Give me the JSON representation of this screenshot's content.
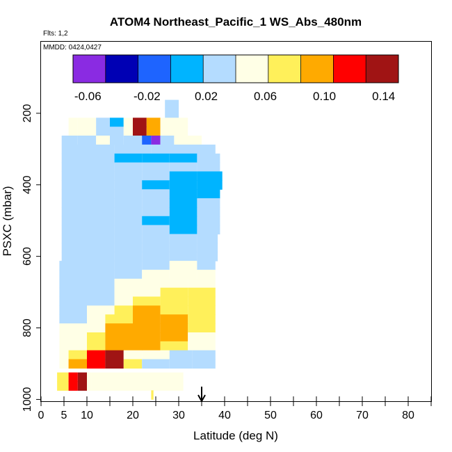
{
  "chart_data": {
    "type": "heatmap",
    "title": "ATOM4 Northeast_Pacific_1 WS_Abs_480nm",
    "flights_note": "Flts: 1,2",
    "date_note": "MMDD: 0424,0427",
    "xlabel": "Latitude (deg N)",
    "ylabel": "PSXC (mbar)",
    "xlim": [
      0,
      85
    ],
    "ylim": [
      1000,
      0
    ],
    "x_major_ticks": [
      0,
      5,
      10,
      20,
      30,
      40,
      50,
      60,
      70,
      80
    ],
    "x_minor_ticks": [
      15,
      25,
      35,
      45,
      55,
      65,
      75,
      85
    ],
    "y_ticks": [
      200,
      400,
      600,
      800,
      1000
    ],
    "colorbar": {
      "range": [
        -0.07,
        0.15
      ],
      "ticks": [
        -0.06,
        -0.02,
        0.02,
        0.06,
        0.1,
        0.14
      ],
      "tick_labels": [
        "-0.06",
        "-0.02",
        "0.02",
        "0.06",
        "0.10",
        "0.14"
      ],
      "colors": [
        "#8a2be2",
        "#0000b4",
        "#1e64ff",
        "#00b4ff",
        "#b4dcff",
        "#ffffe6",
        "#fff05a",
        "#ffaa00",
        "#ff0000",
        "#a01414"
      ]
    },
    "marker": {
      "type": "arrow",
      "x": 35,
      "label": ""
    },
    "rows": [
      {
        "p": 175,
        "segments": [
          [
            27,
            30,
            0.025
          ]
        ]
      },
      {
        "p": 200,
        "segments": [
          [
            27,
            30,
            0.025
          ]
        ]
      },
      {
        "p": 225,
        "segments": [
          [
            6,
            8,
            0.06
          ],
          [
            8,
            12,
            0.05
          ],
          [
            12,
            15,
            0.03
          ],
          [
            15,
            18,
            0.01
          ],
          [
            18,
            20,
            0.05
          ],
          [
            20,
            23,
            0.13
          ],
          [
            23,
            26,
            0.09
          ],
          [
            26,
            30,
            0.06
          ],
          [
            30,
            32,
            0.04
          ]
        ]
      },
      {
        "p": 250,
        "segments": [
          [
            6,
            8,
            0.06
          ],
          [
            8,
            12,
            0.05
          ],
          [
            12,
            15,
            0.03
          ],
          [
            15,
            18,
            0.02
          ],
          [
            18,
            20,
            0.05
          ],
          [
            20,
            23,
            0.14
          ],
          [
            23,
            26,
            0.1
          ],
          [
            26,
            30,
            0.06
          ],
          [
            30,
            32,
            0.04
          ]
        ]
      },
      {
        "p": 275,
        "segments": [
          [
            4.5,
            8,
            0.03
          ],
          [
            8,
            12,
            0.02
          ],
          [
            12,
            15,
            0.04
          ],
          [
            15,
            18,
            0.03
          ],
          [
            18,
            22,
            0.02
          ],
          [
            22,
            24,
            -0.01
          ],
          [
            24,
            26,
            -0.05
          ],
          [
            26,
            29,
            0.03
          ],
          [
            29,
            35,
            0.04
          ]
        ]
      },
      {
        "p": 300,
        "segments": [
          [
            4.5,
            10,
            0.03
          ],
          [
            10,
            16,
            0.025
          ],
          [
            16,
            20,
            0.02
          ],
          [
            20,
            24,
            0.03
          ],
          [
            24,
            30,
            0.02
          ],
          [
            30,
            38,
            0.02
          ]
        ]
      },
      {
        "p": 325,
        "segments": [
          [
            4.5,
            10,
            0.03
          ],
          [
            10,
            16,
            0.02
          ],
          [
            16,
            22,
            0.015
          ],
          [
            22,
            28,
            0.01
          ],
          [
            28,
            34,
            0.01
          ],
          [
            34,
            39,
            0.02
          ]
        ]
      },
      {
        "p": 350,
        "segments": [
          [
            4.5,
            10,
            0.03
          ],
          [
            10,
            16,
            0.025
          ],
          [
            16,
            22,
            0.02
          ],
          [
            22,
            28,
            0.025
          ],
          [
            28,
            34,
            0.02
          ],
          [
            34,
            39,
            0.025
          ]
        ]
      },
      {
        "p": 375,
        "segments": [
          [
            4.5,
            10,
            0.03
          ],
          [
            10,
            16,
            0.025
          ],
          [
            16,
            22,
            0.02
          ],
          [
            22,
            28,
            0.02
          ],
          [
            28,
            34,
            0.01
          ],
          [
            34,
            39.5,
            0.0
          ]
        ]
      },
      {
        "p": 400,
        "segments": [
          [
            4.5,
            10,
            0.03
          ],
          [
            10,
            16,
            0.025
          ],
          [
            16,
            22,
            0.02
          ],
          [
            22,
            28,
            0.015
          ],
          [
            28,
            34,
            0.01
          ],
          [
            34,
            39.5,
            0.005
          ]
        ]
      },
      {
        "p": 425,
        "segments": [
          [
            4.5,
            10,
            0.03
          ],
          [
            10,
            16,
            0.025
          ],
          [
            16,
            22,
            0.02
          ],
          [
            22,
            28,
            0.02
          ],
          [
            28,
            34,
            0.005
          ],
          [
            34,
            39,
            0.015
          ]
        ]
      },
      {
        "p": 450,
        "segments": [
          [
            4.5,
            10,
            0.03
          ],
          [
            10,
            16,
            0.025
          ],
          [
            16,
            22,
            0.02
          ],
          [
            22,
            28,
            0.02
          ],
          [
            28,
            34,
            0.01
          ],
          [
            34,
            39,
            0.02
          ]
        ]
      },
      {
        "p": 475,
        "segments": [
          [
            4.5,
            10,
            0.03
          ],
          [
            10,
            16,
            0.025
          ],
          [
            16,
            22,
            0.02
          ],
          [
            22,
            28,
            0.02
          ],
          [
            28,
            34,
            0.01
          ],
          [
            34,
            39,
            0.02
          ]
        ]
      },
      {
        "p": 500,
        "segments": [
          [
            4.5,
            10,
            0.03
          ],
          [
            10,
            16,
            0.025
          ],
          [
            16,
            22,
            0.02
          ],
          [
            22,
            28,
            0.015
          ],
          [
            28,
            34,
            0.01
          ],
          [
            34,
            39,
            0.02
          ]
        ]
      },
      {
        "p": 525,
        "segments": [
          [
            4.5,
            10,
            0.03
          ],
          [
            10,
            16,
            0.025
          ],
          [
            16,
            22,
            0.02
          ],
          [
            22,
            28,
            0.02
          ],
          [
            28,
            34,
            0.015
          ],
          [
            34,
            39,
            0.02
          ]
        ]
      },
      {
        "p": 550,
        "segments": [
          [
            4.5,
            10,
            0.03
          ],
          [
            10,
            16,
            0.025
          ],
          [
            16,
            22,
            0.02
          ],
          [
            22,
            28,
            0.02
          ],
          [
            28,
            34,
            0.02
          ],
          [
            34,
            38.5,
            0.025
          ]
        ]
      },
      {
        "p": 575,
        "segments": [
          [
            4.5,
            10,
            0.03
          ],
          [
            10,
            16,
            0.025
          ],
          [
            16,
            22,
            0.02
          ],
          [
            22,
            28,
            0.02
          ],
          [
            28,
            34,
            0.02
          ],
          [
            34,
            38.5,
            0.025
          ]
        ]
      },
      {
        "p": 600,
        "segments": [
          [
            4.5,
            10,
            0.03
          ],
          [
            10,
            16,
            0.025
          ],
          [
            16,
            22,
            0.02
          ],
          [
            22,
            28,
            0.02
          ],
          [
            28,
            34,
            0.025
          ],
          [
            34,
            38.5,
            0.03
          ]
        ]
      },
      {
        "p": 625,
        "segments": [
          [
            4,
            10,
            0.035
          ],
          [
            10,
            16,
            0.03
          ],
          [
            16,
            22,
            0.025
          ],
          [
            22,
            28,
            0.03
          ],
          [
            28,
            34,
            0.045
          ],
          [
            34,
            38,
            0.03
          ]
        ]
      },
      {
        "p": 650,
        "segments": [
          [
            4,
            10,
            0.035
          ],
          [
            10,
            16,
            0.03
          ],
          [
            16,
            22,
            0.03
          ],
          [
            22,
            28,
            0.045
          ],
          [
            28,
            34,
            0.055
          ],
          [
            34,
            38,
            0.04
          ]
        ]
      },
      {
        "p": 675,
        "segments": [
          [
            4,
            10,
            0.035
          ],
          [
            10,
            16,
            0.03
          ],
          [
            16,
            20,
            0.04
          ],
          [
            20,
            26,
            0.06
          ],
          [
            26,
            32,
            0.06
          ],
          [
            32,
            38,
            0.04
          ]
        ]
      },
      {
        "p": 700,
        "segments": [
          [
            4,
            10,
            0.035
          ],
          [
            10,
            16,
            0.035
          ],
          [
            16,
            20,
            0.045
          ],
          [
            20,
            26,
            0.06
          ],
          [
            26,
            32,
            0.07
          ],
          [
            32,
            38,
            0.065
          ]
        ]
      },
      {
        "p": 725,
        "segments": [
          [
            4,
            10,
            0.035
          ],
          [
            10,
            16,
            0.035
          ],
          [
            16,
            20,
            0.05
          ],
          [
            20,
            26,
            0.065
          ],
          [
            26,
            32,
            0.075
          ],
          [
            32,
            38,
            0.065
          ]
        ]
      },
      {
        "p": 750,
        "segments": [
          [
            4,
            10,
            0.035
          ],
          [
            10,
            16,
            0.04
          ],
          [
            16,
            20,
            0.065
          ],
          [
            20,
            26,
            0.085
          ],
          [
            26,
            32,
            0.08
          ],
          [
            32,
            38,
            0.07
          ]
        ]
      },
      {
        "p": 775,
        "segments": [
          [
            4,
            10,
            0.035
          ],
          [
            10,
            14,
            0.05
          ],
          [
            14,
            20,
            0.08
          ],
          [
            20,
            26,
            0.09
          ],
          [
            26,
            32,
            0.085
          ],
          [
            32,
            38,
            0.07
          ]
        ]
      },
      {
        "p": 800,
        "segments": [
          [
            4,
            10,
            0.04
          ],
          [
            10,
            14,
            0.06
          ],
          [
            14,
            20,
            0.085
          ],
          [
            20,
            26,
            0.09
          ],
          [
            26,
            32,
            0.085
          ],
          [
            32,
            38,
            0.065
          ]
        ]
      },
      {
        "p": 825,
        "segments": [
          [
            4,
            10,
            0.04
          ],
          [
            10,
            14,
            0.065
          ],
          [
            14,
            20,
            0.09
          ],
          [
            20,
            26,
            0.095
          ],
          [
            26,
            32,
            0.085
          ],
          [
            32,
            38,
            0.06
          ]
        ]
      },
      {
        "p": 850,
        "segments": [
          [
            4,
            10,
            0.04
          ],
          [
            10,
            14,
            0.07
          ],
          [
            14,
            20,
            0.095
          ],
          [
            20,
            26,
            0.095
          ],
          [
            26,
            32,
            0.08
          ],
          [
            32,
            38,
            0.06
          ]
        ]
      },
      {
        "p": 875,
        "segments": [
          [
            4,
            6,
            0.04
          ],
          [
            6,
            10,
            0.07
          ],
          [
            10,
            14,
            0.11
          ],
          [
            14,
            18,
            0.13
          ],
          [
            18,
            22,
            0.06
          ],
          [
            22,
            28,
            0.04
          ],
          [
            28,
            33,
            0.03
          ],
          [
            33,
            38,
            0.02
          ]
        ]
      },
      {
        "p": 900,
        "segments": [
          [
            4,
            6,
            0.05
          ],
          [
            6,
            10,
            0.09
          ],
          [
            10,
            14,
            0.12
          ],
          [
            14,
            18,
            0.14
          ],
          [
            18,
            22,
            0.07
          ],
          [
            22,
            28,
            0.035
          ],
          [
            28,
            33,
            0.03
          ],
          [
            33,
            38,
            0.025
          ]
        ]
      },
      {
        "p": 937,
        "segments": [
          [
            3.5,
            6,
            0.08
          ],
          [
            6,
            8,
            0.11
          ],
          [
            8,
            10,
            0.14
          ],
          [
            10,
            11,
            0.06
          ],
          [
            11,
            31,
            0.045
          ]
        ]
      },
      {
        "p": 962,
        "segments": [
          [
            3.5,
            6,
            0.08
          ],
          [
            6,
            8,
            0.11
          ],
          [
            8,
            10,
            0.14
          ],
          [
            10,
            11,
            0.06
          ],
          [
            11,
            31,
            0.045
          ]
        ]
      },
      {
        "p": 987,
        "segments": [
          [
            24,
            24.5,
            0.07
          ]
        ]
      }
    ]
  }
}
